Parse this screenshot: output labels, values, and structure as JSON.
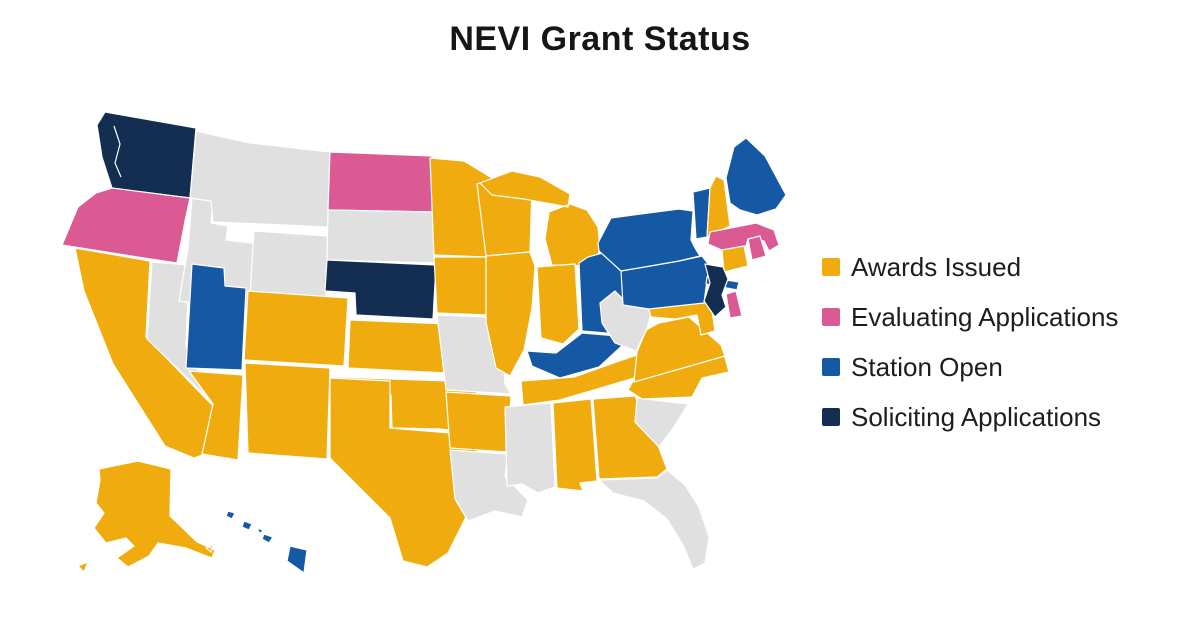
{
  "title": "NEVI Grant Status",
  "legend": {
    "position": "right",
    "items": [
      {
        "id": "awards",
        "label": "Awards Issued",
        "color": "#F0AC0E"
      },
      {
        "id": "evaluating",
        "label": "Evaluating Applications",
        "color": "#DB5A93"
      },
      {
        "id": "station",
        "label": "Station Open",
        "color": "#1559A4"
      },
      {
        "id": "soliciting",
        "label": "Soliciting Applications",
        "color": "#132E51"
      }
    ],
    "no_data_color": "#E0E0E1"
  },
  "chart_data": {
    "type": "choropleth",
    "title": "NEVI Grant Status",
    "region": "United States",
    "legend_position": "right",
    "categories": [
      "Awards Issued",
      "Evaluating Applications",
      "Station Open",
      "Soliciting Applications"
    ],
    "category_colors": {
      "Awards Issued": "#F0AC0E",
      "Evaluating Applications": "#DB5A93",
      "Station Open": "#1559A4",
      "Soliciting Applications": "#132E51",
      "No data (unshaded)": "#E0E0E1"
    },
    "state_status": {
      "WA": "soliciting",
      "OR": "evaluating",
      "CA": "awards",
      "NV": "none",
      "ID": "none",
      "MT": "none",
      "WY": "none",
      "UT": "station",
      "CO": "awards",
      "AZ": "awards",
      "NM": "awards",
      "ND": "evaluating",
      "SD": "none",
      "NE": "soliciting",
      "KS": "awards",
      "OK": "awards",
      "TX": "awards",
      "MN": "awards",
      "IA": "awards",
      "MO": "none",
      "AR": "awards",
      "LA": "none",
      "WI": "awards",
      "IL": "awards",
      "MI": "awards",
      "IN": "awards",
      "OH": "station",
      "KY": "station",
      "TN": "awards",
      "MS": "none",
      "AL": "awards",
      "GA": "awards",
      "FL": "none",
      "SC": "none",
      "NC": "awards",
      "VA": "awards",
      "WV": "none",
      "MD": "awards",
      "DE": "evaluating",
      "NJ": "soliciting",
      "PA": "station",
      "NY": "station",
      "CT": "awards",
      "RI": "evaluating",
      "MA": "evaluating",
      "VT": "station",
      "NH": "awards",
      "ME": "station",
      "AK": "awards",
      "HI": "station"
    },
    "series": [
      {
        "name": "Awards Issued",
        "states": [
          "AK",
          "AL",
          "AR",
          "AZ",
          "CA",
          "CO",
          "CT",
          "GA",
          "IA",
          "IL",
          "IN",
          "KS",
          "MD",
          "MI",
          "MN",
          "NC",
          "NH",
          "NM",
          "OK",
          "TN",
          "TX",
          "VA",
          "WI"
        ]
      },
      {
        "name": "Evaluating Applications",
        "states": [
          "DE",
          "MA",
          "ND",
          "OR",
          "RI"
        ]
      },
      {
        "name": "Station Open",
        "states": [
          "HI",
          "KY",
          "ME",
          "NY",
          "OH",
          "PA",
          "UT",
          "VT"
        ]
      },
      {
        "name": "Soliciting Applications",
        "states": [
          "NE",
          "NJ",
          "WA"
        ]
      },
      {
        "name": "No data (unshaded)",
        "states": [
          "FL",
          "ID",
          "LA",
          "MO",
          "MS",
          "MT",
          "NV",
          "SC",
          "SD",
          "WV",
          "WY"
        ]
      }
    ]
  }
}
